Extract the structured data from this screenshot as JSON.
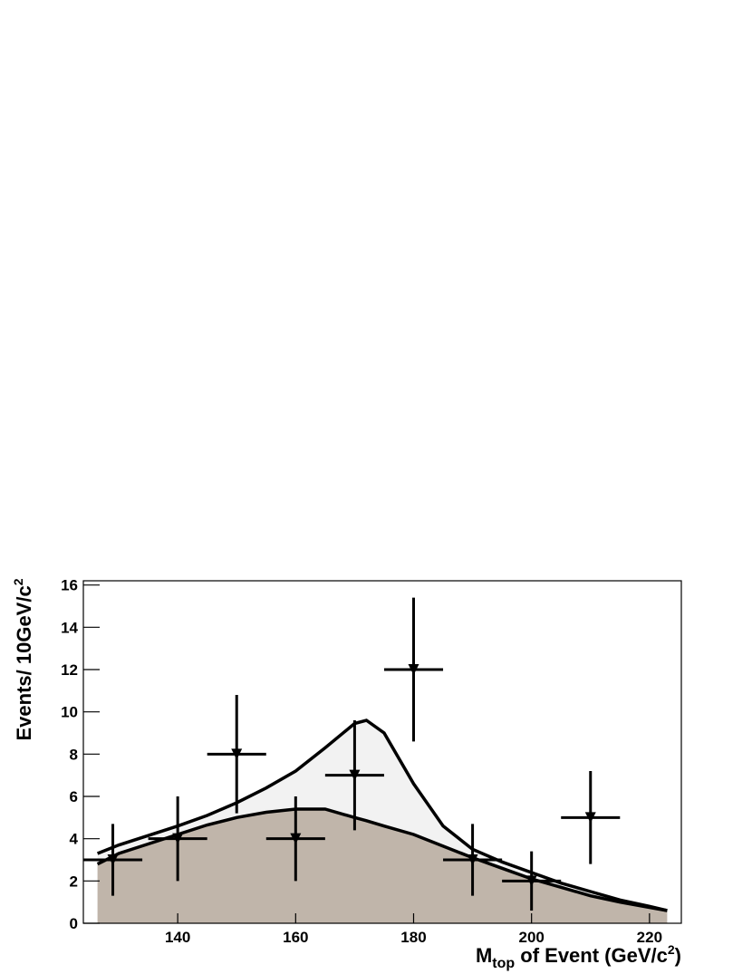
{
  "chart_data": {
    "type": "line",
    "x_label": {
      "main": "M",
      "sub": "top",
      "rest": " of Event (GeV/c",
      "sup": "2",
      "end": ")"
    },
    "y_label": {
      "main": "Events/ 10GeV/c",
      "sup": "2"
    },
    "xlim": [
      124,
      225.4
    ],
    "ylim": [
      0,
      16.2
    ],
    "xticks": [
      140,
      160,
      180,
      200,
      220
    ],
    "yticks": [
      0,
      2,
      4,
      6,
      8,
      10,
      12,
      14,
      16
    ],
    "x": [
      126.4,
      130,
      135,
      140,
      145,
      150,
      155,
      160,
      165,
      170,
      172,
      175,
      180,
      185,
      190,
      195,
      200,
      205,
      210,
      215,
      220,
      223
    ],
    "series": [
      {
        "color": "#f2f2f2",
        "values": [
          3.3,
          3.7,
          4.15,
          4.6,
          5.1,
          5.7,
          6.4,
          7.2,
          8.3,
          9.45,
          9.6,
          9.0,
          6.6,
          4.6,
          3.5,
          2.9,
          2.4,
          1.9,
          1.5,
          1.1,
          0.8,
          0.6
        ]
      },
      {
        "color": "#c0b5aa",
        "values": [
          2.8,
          3.3,
          3.75,
          4.2,
          4.65,
          5.0,
          5.25,
          5.4,
          5.4,
          5.0,
          4.85,
          4.6,
          4.2,
          3.65,
          3.1,
          2.6,
          2.1,
          1.7,
          1.3,
          1.0,
          0.75,
          0.6
        ]
      }
    ],
    "points": {
      "x": [
        129,
        140,
        150,
        160,
        170,
        180,
        190,
        200,
        210
      ],
      "values": [
        3,
        4,
        8,
        4,
        7,
        12,
        3,
        2,
        5
      ],
      "yerr": [
        1.7,
        2,
        2.8,
        2,
        2.6,
        3.4,
        1.7,
        1.4,
        2.2
      ],
      "xerr": [
        5,
        5,
        5,
        5,
        5,
        5,
        5,
        5,
        5
      ]
    }
  }
}
